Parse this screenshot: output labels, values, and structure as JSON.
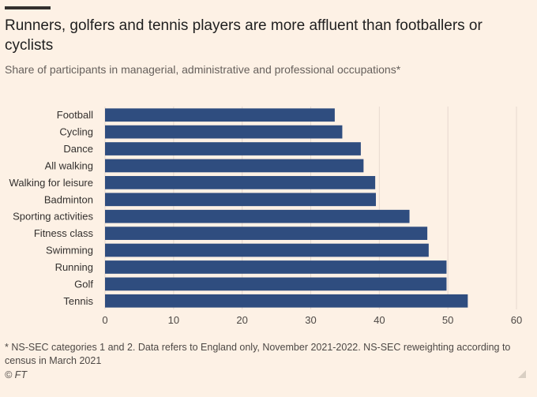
{
  "header": {
    "title": "Runners, golfers and tennis players are more affluent than footballers or cyclists",
    "subtitle": "Share of participants in managerial, administrative and professional occupations*"
  },
  "chart_data": {
    "type": "bar",
    "orientation": "horizontal",
    "categories": [
      "Football",
      "Cycling",
      "Dance",
      "All walking",
      "Walking for leisure",
      "Badminton",
      "Sporting activities",
      "Fitness class",
      "Swimming",
      "Running",
      "Golf",
      "Tennis"
    ],
    "values": [
      33.5,
      34.6,
      37.3,
      37.7,
      39.4,
      39.5,
      44.4,
      47.0,
      47.2,
      49.8,
      49.8,
      52.9
    ],
    "xlim": [
      0,
      60
    ],
    "xticks": [
      0,
      10,
      20,
      30,
      40,
      50,
      60
    ],
    "grid": true,
    "bar_color": "#2f4d7f"
  },
  "footer": {
    "footnote": "* NS-SEC categories 1 and 2. Data refers to England only, November 2021-2022. NS-SEC reweighting according to census in March 2021",
    "source": "© FT"
  }
}
